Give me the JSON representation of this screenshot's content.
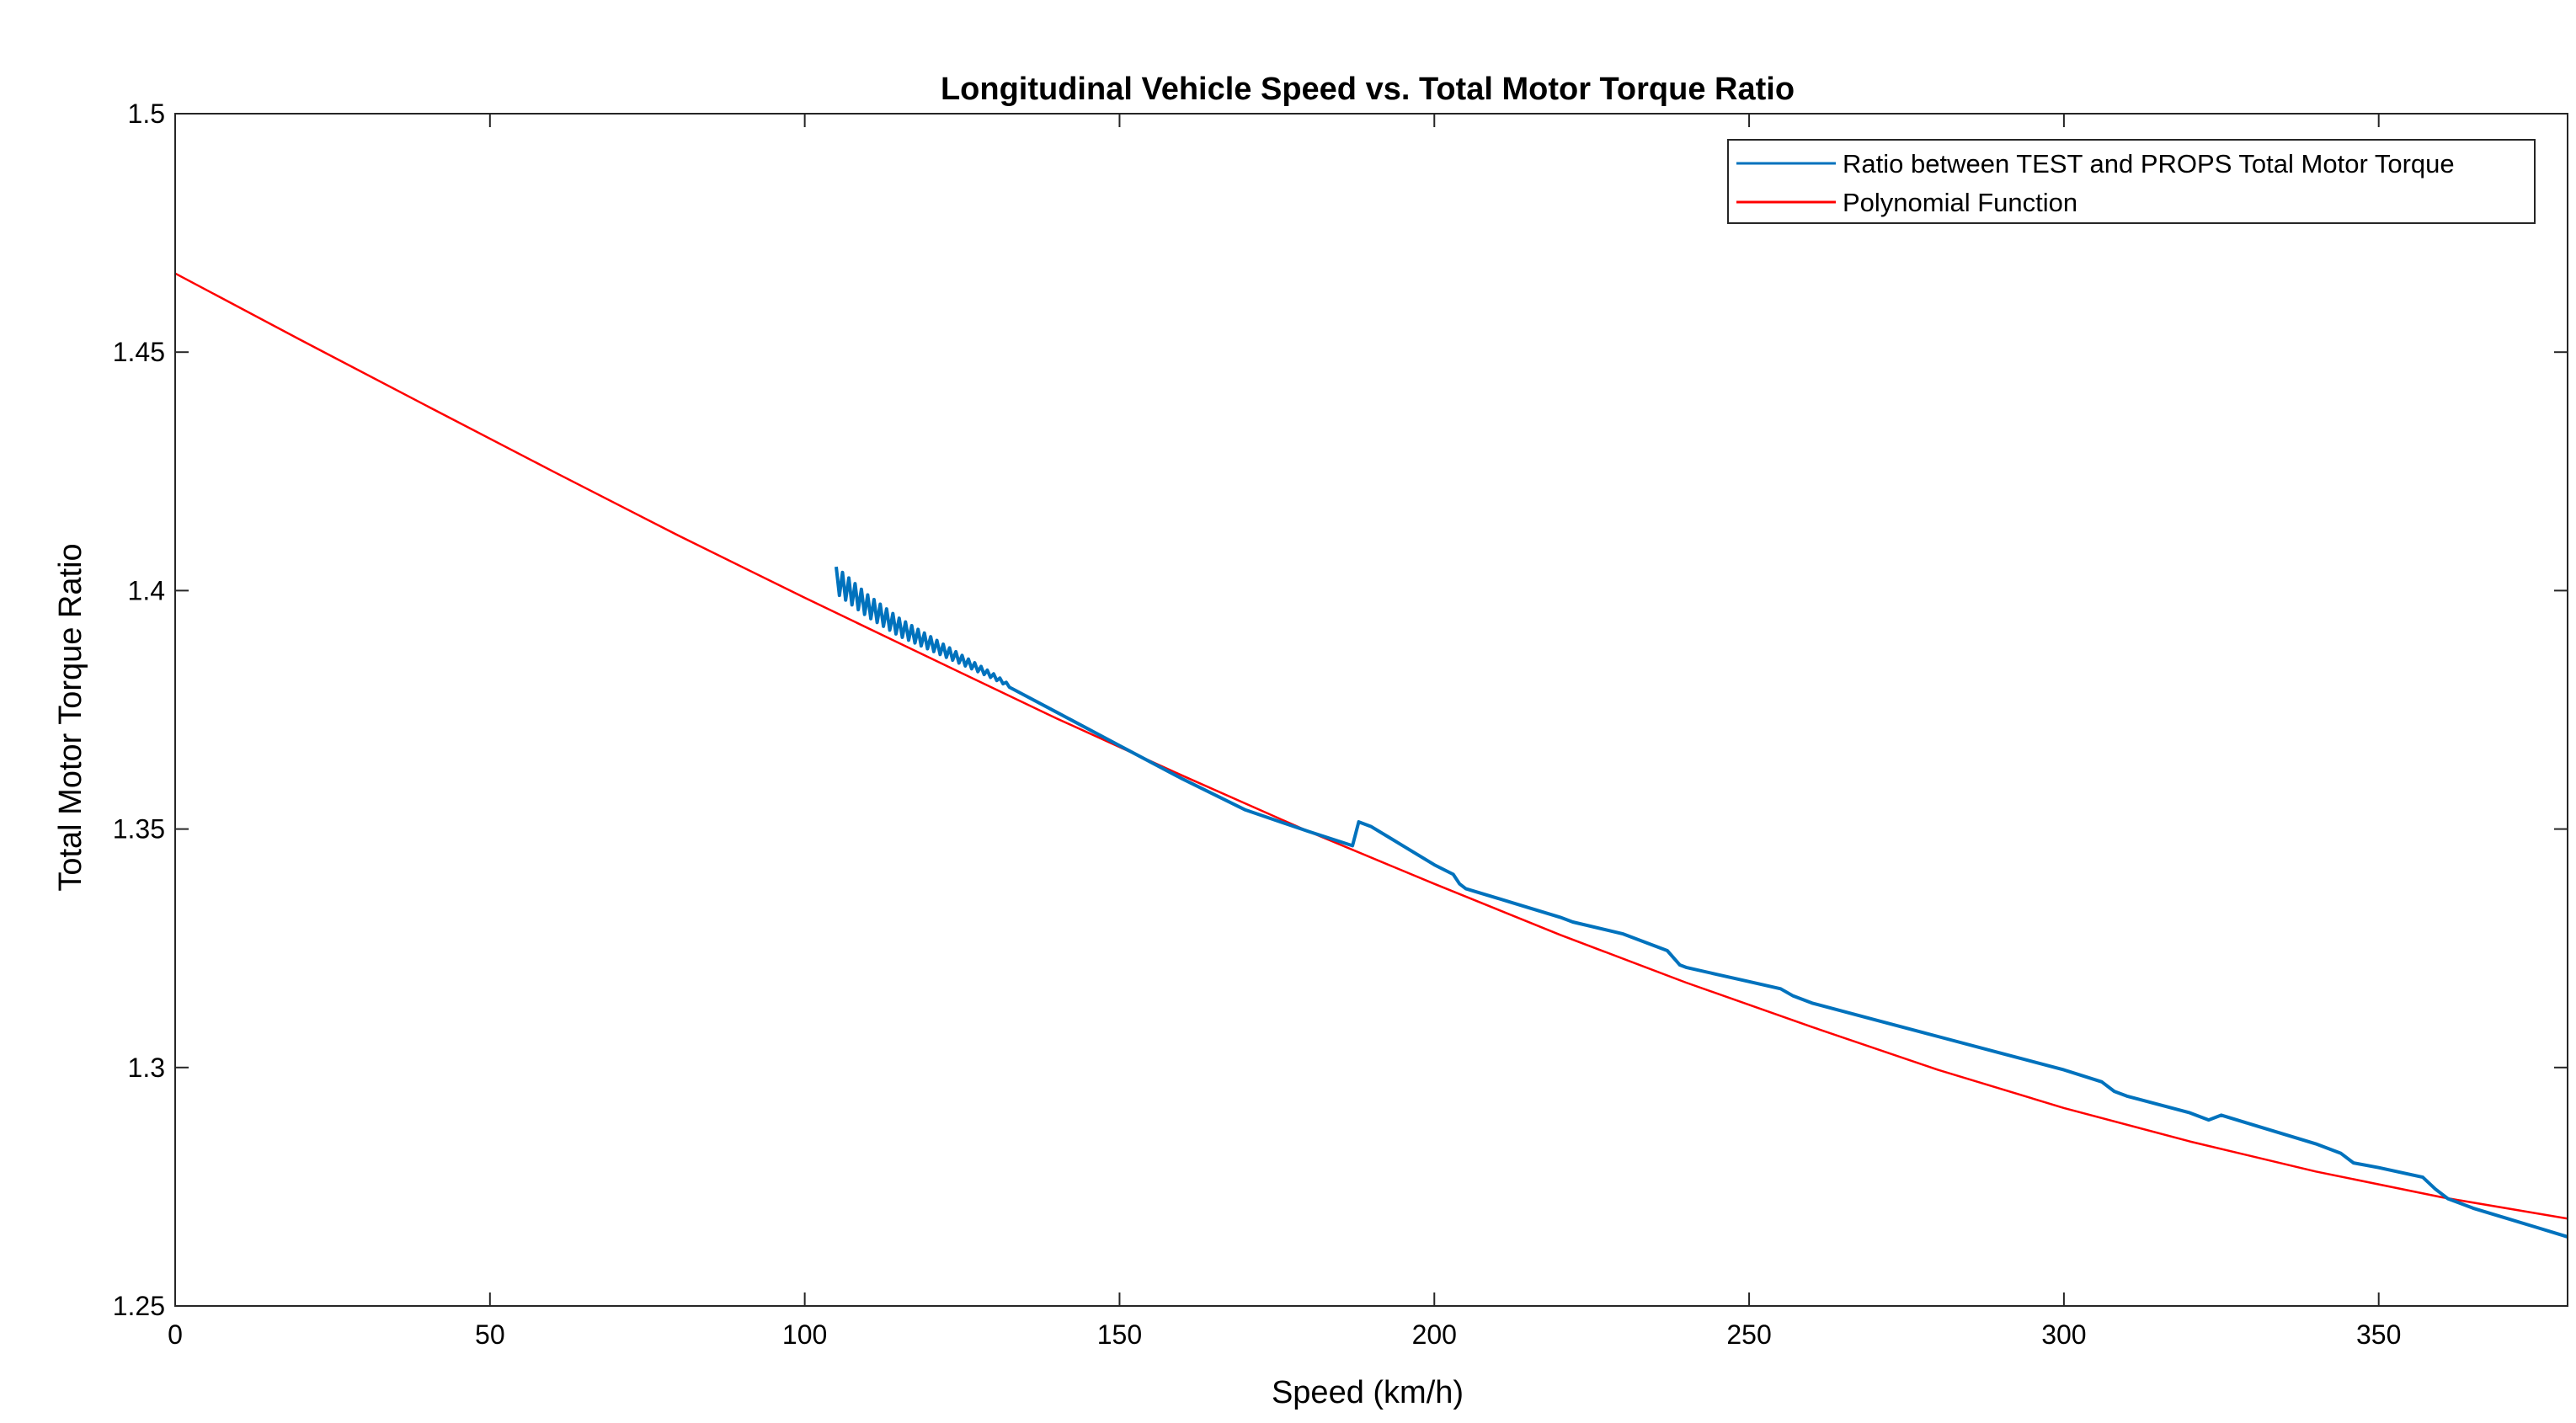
{
  "chart_data": {
    "type": "line",
    "title": "Longitudinal Vehicle Speed vs. Total Motor Torque Ratio",
    "xlabel": "Speed (km/h)",
    "ylabel": "Total Motor Torque Ratio",
    "xlim": [
      0,
      380
    ],
    "ylim": [
      1.25,
      1.5
    ],
    "x_ticks": [
      0,
      50,
      100,
      150,
      200,
      250,
      300,
      350
    ],
    "x_tick_labels": [
      "0",
      "50",
      "100",
      "150",
      "200",
      "250",
      "300",
      "350"
    ],
    "y_ticks": [
      1.25,
      1.3,
      1.35,
      1.4,
      1.45,
      1.5
    ],
    "y_tick_labels": [
      "1.25",
      "1.3",
      "1.35",
      "1.4",
      "1.45",
      "1.5"
    ],
    "legend_position": "top-right",
    "series": [
      {
        "name": "Ratio between TEST and PROPS Total Motor Torque",
        "color": "#0072BD",
        "oscillation": {
          "x_start": 105,
          "x_end": 133,
          "amplitude_start": 0.0055,
          "amplitude_end": 0.0005,
          "period": 1.0
        },
        "x": [
          105,
          110,
          115,
          120,
          125,
          130,
          135,
          140,
          150,
          160,
          170,
          180,
          187,
          188,
          190,
          195,
          200,
          203,
          204,
          205,
          210,
          215,
          220,
          222,
          230,
          237,
          239,
          240,
          245,
          250,
          255,
          257,
          260,
          270,
          280,
          290,
          300,
          306,
          308,
          310,
          320,
          323,
          325,
          330,
          340,
          344,
          346,
          350,
          357,
          359,
          361,
          365,
          370,
          375,
          380
        ],
        "y": [
          1.3995,
          1.3945,
          1.3905,
          1.3875,
          1.3845,
          1.3815,
          1.378,
          1.3745,
          1.3675,
          1.3605,
          1.354,
          1.3495,
          1.3465,
          1.3515,
          1.3505,
          1.3465,
          1.3425,
          1.3405,
          1.3385,
          1.3375,
          1.3355,
          1.3335,
          1.3315,
          1.3305,
          1.328,
          1.3245,
          1.3215,
          1.321,
          1.3195,
          1.318,
          1.3165,
          1.315,
          1.3135,
          1.31,
          1.3065,
          1.303,
          1.2995,
          1.297,
          1.295,
          1.294,
          1.2905,
          1.289,
          1.29,
          1.288,
          1.284,
          1.282,
          1.28,
          1.279,
          1.277,
          1.2745,
          1.2725,
          1.2705,
          1.2685,
          1.2665,
          1.2645
        ]
      },
      {
        "name": "Polynomial Function",
        "color": "#FF0000",
        "x": [
          0,
          20,
          40,
          60,
          80,
          100,
          120,
          140,
          160,
          180,
          200,
          220,
          240,
          260,
          280,
          300,
          320,
          340,
          360,
          380
        ],
        "y": [
          1.4665,
          1.4525,
          1.4387,
          1.425,
          1.4115,
          1.3985,
          1.3858,
          1.3732,
          1.3612,
          1.3495,
          1.3385,
          1.3278,
          1.3178,
          1.3085,
          1.2995,
          1.2915,
          1.2845,
          1.2782,
          1.2728,
          1.2683
        ]
      }
    ]
  }
}
